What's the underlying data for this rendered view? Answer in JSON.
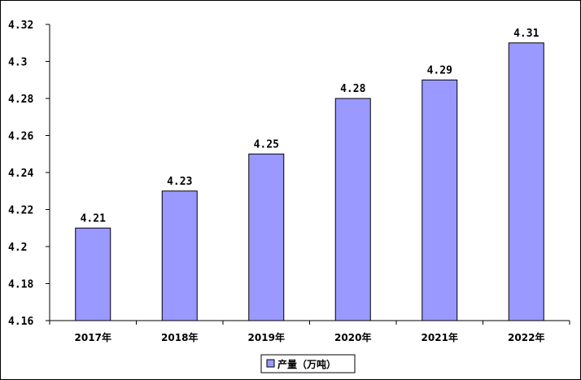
{
  "chart_data": {
    "type": "bar",
    "categories": [
      "2017年",
      "2018年",
      "2019年",
      "2020年",
      "2021年",
      "2022年"
    ],
    "series": [
      {
        "name": "产量（万吨）",
        "values": [
          4.21,
          4.23,
          4.25,
          4.28,
          4.29,
          4.31
        ]
      }
    ],
    "data_labels": [
      "4.21",
      "4.23",
      "4.25",
      "4.28",
      "4.29",
      "4.31"
    ],
    "ylim": [
      4.16,
      4.32
    ],
    "y_ticks": [
      4.16,
      4.18,
      4.2,
      4.22,
      4.24,
      4.26,
      4.28,
      4.3,
      4.32
    ],
    "y_tick_labels": [
      "4.16",
      "4.18",
      "4.2",
      "4.22",
      "4.24",
      "4.26",
      "4.28",
      "4.3",
      "4.32"
    ],
    "grid": false,
    "legend_position": "bottom",
    "colors": {
      "bar": "#9999ff",
      "bar_stroke": "#000000",
      "axis": "#000000"
    }
  }
}
